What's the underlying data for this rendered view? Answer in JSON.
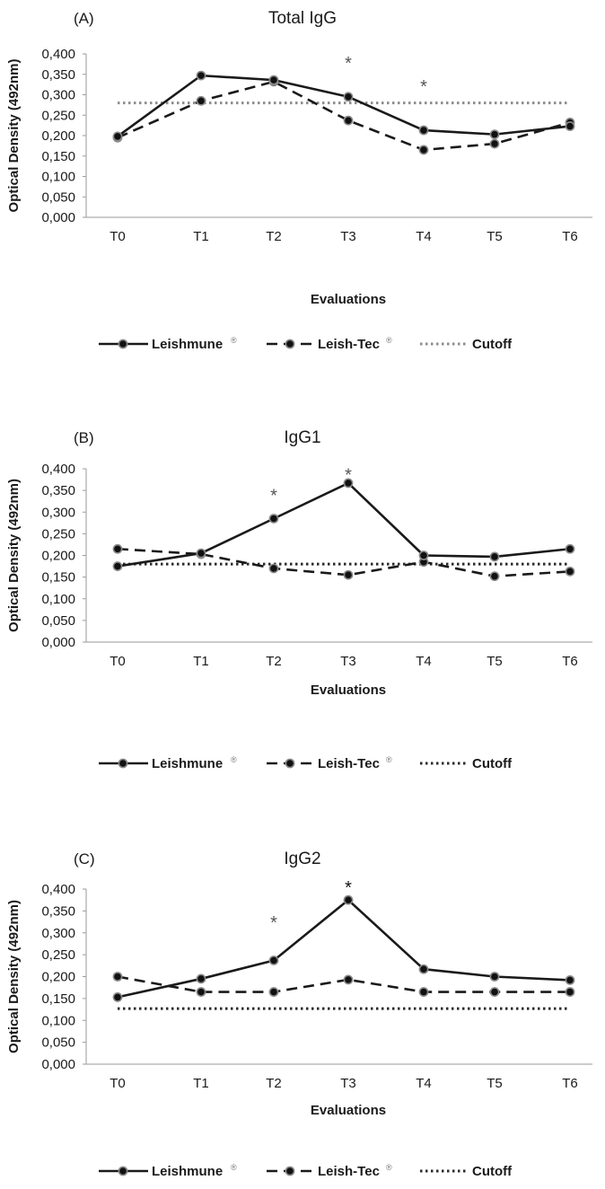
{
  "figure": {
    "x_categories": [
      "T0",
      "T1",
      "T2",
      "T3",
      "T4",
      "T5",
      "T6"
    ],
    "y_tick_labels": [
      "0,000",
      "0,050",
      "0,100",
      "0,150",
      "0,200",
      "0,250",
      "0,300",
      "0,350",
      "0,400"
    ],
    "ylabel": "Optical Density (492nm)",
    "xlabel": "Evaluations",
    "legend": {
      "leishmune": "Leishmune",
      "leishtec": "Leish-Tec",
      "cutoff": "Cutoff",
      "registered_mark": "®"
    },
    "colors": {
      "line": "#1a1a1a",
      "marker_fill": "#111111",
      "marker_stroke": "#8a8a8a",
      "axis": "#9a9a9a",
      "cutoff_gray": "#8c8c8c",
      "cutoff_dark": "#2a2a2a"
    }
  },
  "chart_data": [
    {
      "type": "line",
      "panel_label": "(A)",
      "title": "Total IgG",
      "categories": [
        "T0",
        "T1",
        "T2",
        "T3",
        "T4",
        "T5",
        "T6"
      ],
      "series": [
        {
          "name": "Leishmune",
          "style": "solid",
          "values": [
            0.198,
            0.347,
            0.336,
            0.295,
            0.213,
            0.203,
            0.223
          ]
        },
        {
          "name": "Leish-Tec",
          "style": "dashed",
          "values": [
            0.195,
            0.285,
            0.332,
            0.237,
            0.165,
            0.18,
            0.232
          ]
        },
        {
          "name": "Cutoff",
          "style": "dotted",
          "values": [
            0.28,
            0.28,
            0.28,
            0.28,
            0.28,
            0.28,
            0.28
          ]
        }
      ],
      "significance": [
        {
          "category": "T3",
          "y": 0.385,
          "label": "*"
        },
        {
          "category": "T4",
          "y": 0.328,
          "label": "*"
        }
      ],
      "xlabel": "Evaluations",
      "ylabel": "Optical Density (492nm)",
      "ylim": [
        0,
        0.4
      ],
      "grid": false,
      "legend_position": "bottom"
    },
    {
      "type": "line",
      "panel_label": "(B)",
      "title": "IgG1",
      "categories": [
        "T0",
        "T1",
        "T2",
        "T3",
        "T4",
        "T5",
        "T6"
      ],
      "series": [
        {
          "name": "Leishmune",
          "style": "solid",
          "values": [
            0.175,
            0.205,
            0.285,
            0.367,
            0.2,
            0.197,
            0.215
          ]
        },
        {
          "name": "Leish-Tec",
          "style": "dashed",
          "values": [
            0.215,
            0.203,
            0.17,
            0.155,
            0.185,
            0.152,
            0.163
          ]
        },
        {
          "name": "Cutoff",
          "style": "dotted",
          "values": [
            0.18,
            0.18,
            0.18,
            0.18,
            0.18,
            0.18,
            0.18
          ]
        }
      ],
      "significance": [
        {
          "category": "T2",
          "y": 0.345,
          "label": "*"
        },
        {
          "category": "T3",
          "y": 0.393,
          "label": "*"
        }
      ],
      "xlabel": "Evaluations",
      "ylabel": "Optical Density (492nm)",
      "ylim": [
        0,
        0.4
      ],
      "grid": false,
      "legend_position": "bottom"
    },
    {
      "type": "line",
      "panel_label": "(C)",
      "title": "IgG2",
      "categories": [
        "T0",
        "T1",
        "T2",
        "T3",
        "T4",
        "T5",
        "T6"
      ],
      "series": [
        {
          "name": "Leishmune",
          "style": "solid",
          "values": [
            0.153,
            0.195,
            0.237,
            0.375,
            0.217,
            0.2,
            0.192
          ]
        },
        {
          "name": "Leish-Tec",
          "style": "dashed",
          "values": [
            0.2,
            0.165,
            0.165,
            0.193,
            0.165,
            0.165,
            0.165
          ]
        },
        {
          "name": "Cutoff",
          "style": "dotted",
          "values": [
            0.127,
            0.127,
            0.127,
            0.127,
            0.127,
            0.127,
            0.127
          ]
        }
      ],
      "significance": [
        {
          "category": "T2",
          "y": 0.33,
          "label": "*"
        },
        {
          "category": "T3",
          "y": 0.41,
          "label": "*"
        }
      ],
      "xlabel": "Evaluations",
      "ylabel": "Optical Density (492nm)",
      "ylim": [
        0,
        0.4
      ],
      "grid": false,
      "legend_position": "bottom"
    }
  ]
}
